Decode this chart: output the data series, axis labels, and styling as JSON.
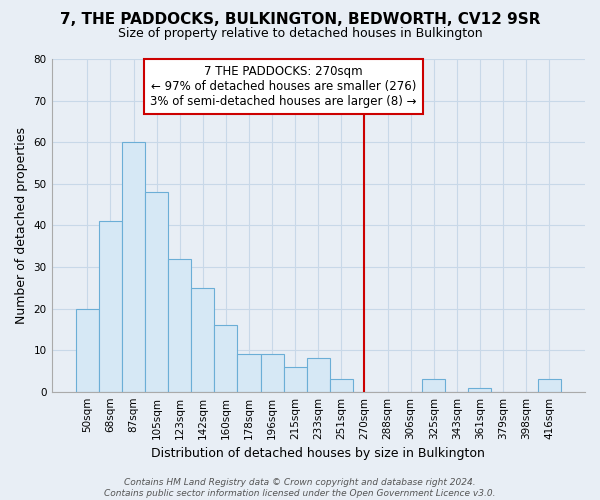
{
  "title": "7, THE PADDOCKS, BULKINGTON, BEDWORTH, CV12 9SR",
  "subtitle": "Size of property relative to detached houses in Bulkington",
  "xlabel": "Distribution of detached houses by size in Bulkington",
  "ylabel": "Number of detached properties",
  "bin_labels": [
    "50sqm",
    "68sqm",
    "87sqm",
    "105sqm",
    "123sqm",
    "142sqm",
    "160sqm",
    "178sqm",
    "196sqm",
    "215sqm",
    "233sqm",
    "251sqm",
    "270sqm",
    "288sqm",
    "306sqm",
    "325sqm",
    "343sqm",
    "361sqm",
    "379sqm",
    "398sqm",
    "416sqm"
  ],
  "bar_heights": [
    20,
    41,
    60,
    48,
    32,
    25,
    16,
    9,
    9,
    6,
    8,
    3,
    0,
    0,
    0,
    3,
    0,
    1,
    0,
    0,
    3
  ],
  "bar_color": "#d6e8f5",
  "bar_edge_color": "#6baed6",
  "vline_x_index": 12,
  "vline_color": "#cc0000",
  "annotation_text": "7 THE PADDOCKS: 270sqm\n← 97% of detached houses are smaller (276)\n3% of semi-detached houses are larger (8) →",
  "annotation_box_color": "white",
  "annotation_box_edge_color": "#cc0000",
  "ylim": [
    0,
    80
  ],
  "yticks": [
    0,
    10,
    20,
    30,
    40,
    50,
    60,
    70,
    80
  ],
  "footnote": "Contains HM Land Registry data © Crown copyright and database right 2024.\nContains public sector information licensed under the Open Government Licence v3.0.",
  "bg_color": "#e8eef5",
  "grid_color": "#c8d8e8",
  "title_fontsize": 11,
  "subtitle_fontsize": 9,
  "axis_label_fontsize": 9,
  "tick_fontsize": 7.5,
  "annotation_fontsize": 8.5,
  "footnote_fontsize": 6.5
}
